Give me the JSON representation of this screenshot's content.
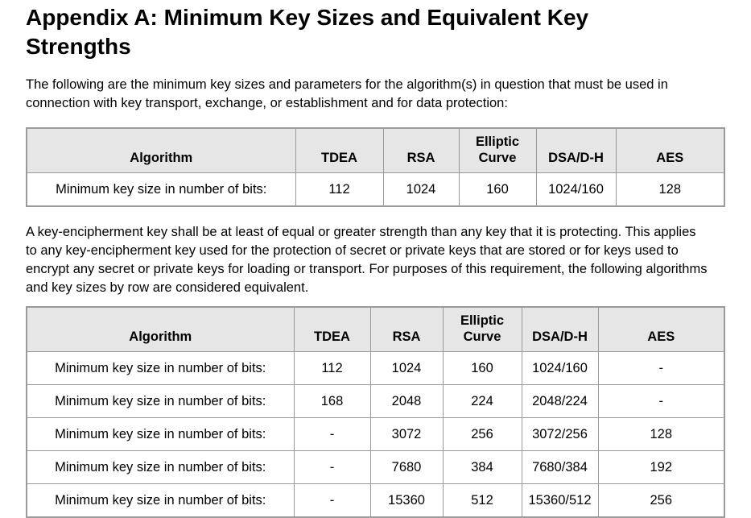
{
  "page": {
    "title": "Appendix A: Minimum Key Sizes and Equivalent Key Strengths",
    "intro": "The following are the minimum key sizes and parameters for the algorithm(s) in question that must be used in connection with key transport, exchange, or establishment and for data protection:",
    "equivalence_note": "A key-encipherment key shall be at least of equal or greater strength than any key that it is protecting. This applies to any key-encipherment key used for the protection of secret or private keys that are stored or for keys used to encrypt any secret or private keys for loading or transport. For purposes of this requirement, the following algorithms and key sizes by row are considered equivalent."
  },
  "colors": {
    "border": "#9a9a9a",
    "header_bg": "#e6e6e6",
    "text": "#000000",
    "background": "#ffffff"
  },
  "table1": {
    "headers": [
      "Algorithm",
      "TDEA",
      "RSA",
      "Elliptic Curve",
      "DSA/D-H",
      "AES"
    ],
    "rows": [
      {
        "label": "Minimum key size in number of bits:",
        "values": [
          "112",
          "1024",
          "160",
          "1024/160",
          "128"
        ]
      }
    ]
  },
  "table2": {
    "headers": [
      "Algorithm",
      "TDEA",
      "RSA",
      "Elliptic Curve",
      "DSA/D-H",
      "AES"
    ],
    "rows": [
      {
        "label": "Minimum key size in number of bits:",
        "values": [
          "112",
          "1024",
          "160",
          "1024/160",
          "-"
        ]
      },
      {
        "label": "Minimum key size in number of bits:",
        "values": [
          "168",
          "2048",
          "224",
          "2048/224",
          "-"
        ]
      },
      {
        "label": "Minimum key size in number of bits:",
        "values": [
          "-",
          "3072",
          "256",
          "3072/256",
          "128"
        ]
      },
      {
        "label": "Minimum key size in number of bits:",
        "values": [
          "-",
          "7680",
          "384",
          "7680/384",
          "192"
        ]
      },
      {
        "label": "Minimum key size in number of bits:",
        "values": [
          "-",
          "15360",
          "512",
          "15360/512",
          "256"
        ]
      }
    ]
  }
}
